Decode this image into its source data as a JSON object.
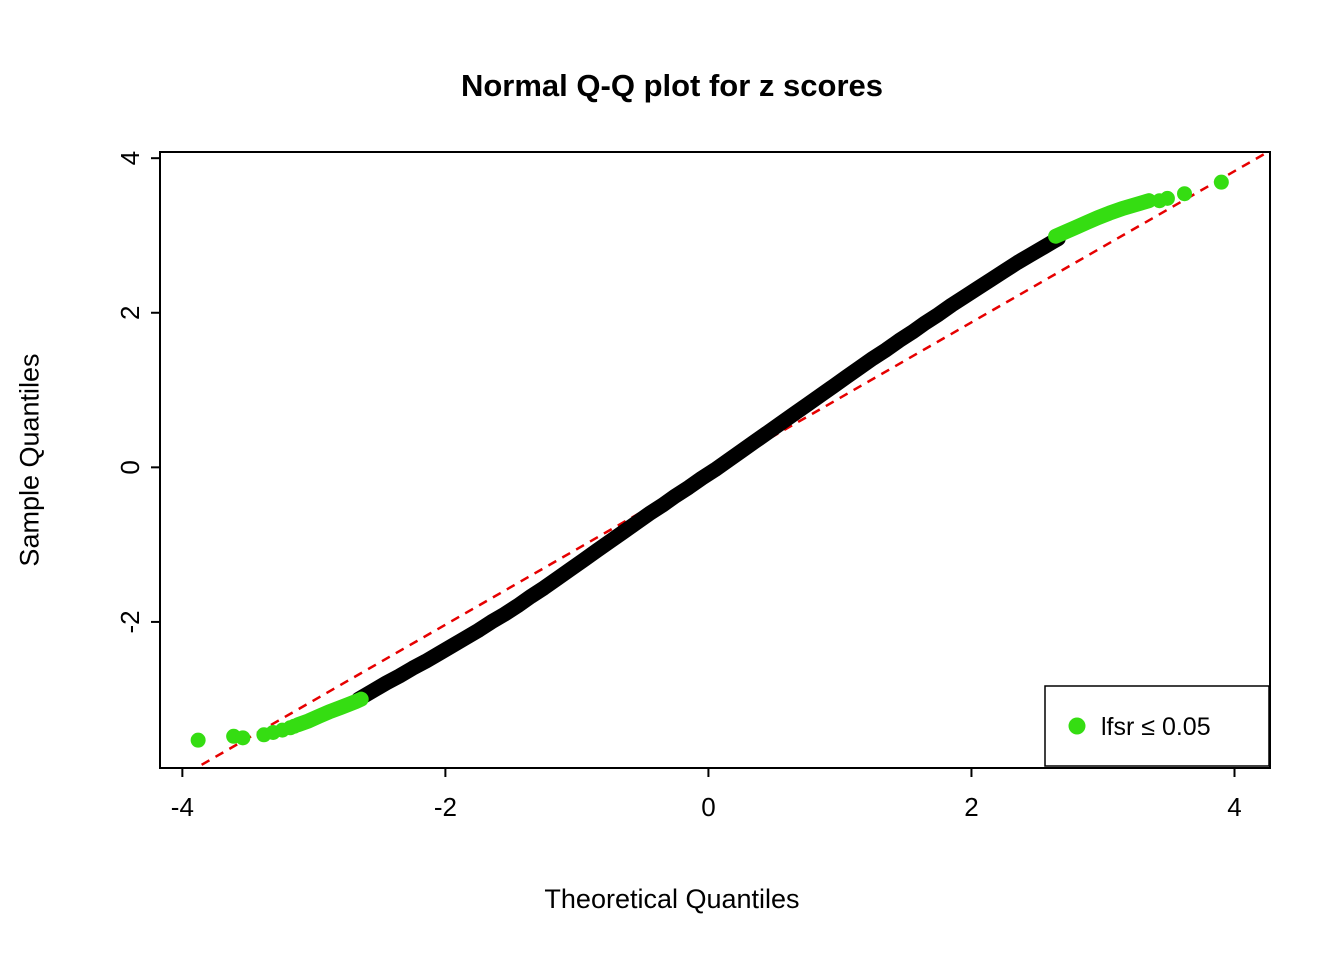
{
  "chart_data": {
    "type": "scatter",
    "title": "Normal Q-Q plot for z scores",
    "xlabel": "Theoretical Quantiles",
    "ylabel": "Sample Quantiles",
    "xlim": [
      -4.17,
      4.27
    ],
    "ylim": [
      -3.89,
      4.08
    ],
    "x_ticks": [
      -4,
      -2,
      0,
      2,
      4
    ],
    "y_ticks": [
      -2,
      0,
      2,
      4
    ],
    "grid": false,
    "reference_line": {
      "slope": 0.978,
      "intercept": -0.08,
      "color": "#E60000",
      "style": "dashed"
    },
    "series": [
      {
        "name": "qq-points-black",
        "color": "#000000",
        "render": "band",
        "points": [
          [
            -2.66,
            -3.0
          ],
          [
            -2.55,
            -2.89
          ],
          [
            -2.45,
            -2.79
          ],
          [
            -2.35,
            -2.7
          ],
          [
            -2.25,
            -2.6
          ],
          [
            -2.15,
            -2.51
          ],
          [
            -2.05,
            -2.41
          ],
          [
            -1.95,
            -2.31
          ],
          [
            -1.85,
            -2.21
          ],
          [
            -1.75,
            -2.11
          ],
          [
            -1.65,
            -2.0
          ],
          [
            -1.55,
            -1.9
          ],
          [
            -1.45,
            -1.79
          ],
          [
            -1.35,
            -1.67
          ],
          [
            -1.25,
            -1.56
          ],
          [
            -1.15,
            -1.44
          ],
          [
            -1.05,
            -1.32
          ],
          [
            -0.95,
            -1.2
          ],
          [
            -0.85,
            -1.08
          ],
          [
            -0.75,
            -0.96
          ],
          [
            -0.65,
            -0.84
          ],
          [
            -0.55,
            -0.72
          ],
          [
            -0.45,
            -0.6
          ],
          [
            -0.35,
            -0.49
          ],
          [
            -0.25,
            -0.37
          ],
          [
            -0.15,
            -0.26
          ],
          [
            -0.05,
            -0.14
          ],
          [
            0.05,
            -0.03
          ],
          [
            0.15,
            0.09
          ],
          [
            0.25,
            0.21
          ],
          [
            0.35,
            0.33
          ],
          [
            0.45,
            0.45
          ],
          [
            0.55,
            0.57
          ],
          [
            0.65,
            0.69
          ],
          [
            0.75,
            0.81
          ],
          [
            0.85,
            0.93
          ],
          [
            0.95,
            1.05
          ],
          [
            1.05,
            1.17
          ],
          [
            1.15,
            1.29
          ],
          [
            1.25,
            1.41
          ],
          [
            1.35,
            1.52
          ],
          [
            1.45,
            1.64
          ],
          [
            1.55,
            1.75
          ],
          [
            1.65,
            1.87
          ],
          [
            1.75,
            1.98
          ],
          [
            1.85,
            2.1
          ],
          [
            1.95,
            2.21
          ],
          [
            2.05,
            2.32
          ],
          [
            2.15,
            2.43
          ],
          [
            2.25,
            2.54
          ],
          [
            2.35,
            2.65
          ],
          [
            2.45,
            2.75
          ],
          [
            2.55,
            2.85
          ],
          [
            2.62,
            2.92
          ],
          [
            2.66,
            2.96
          ]
        ]
      },
      {
        "name": "lfsr-significant-left-band",
        "color": "#35DD12",
        "render": "band",
        "points": [
          [
            -3.12,
            -3.33
          ],
          [
            -3.04,
            -3.28
          ],
          [
            -2.96,
            -3.22
          ],
          [
            -2.88,
            -3.16
          ],
          [
            -2.8,
            -3.11
          ],
          [
            -2.74,
            -3.07
          ],
          [
            -2.68,
            -3.03
          ],
          [
            -2.64,
            -3.0
          ]
        ]
      },
      {
        "name": "lfsr-significant-left-dots",
        "color": "#35DD12",
        "render": "dots",
        "points": [
          [
            -3.88,
            -3.53
          ],
          [
            -3.61,
            -3.48
          ],
          [
            -3.54,
            -3.5
          ],
          [
            -3.38,
            -3.46
          ],
          [
            -3.31,
            -3.43
          ],
          [
            -3.24,
            -3.4
          ],
          [
            -3.18,
            -3.37
          ],
          [
            -3.15,
            -3.35
          ]
        ]
      },
      {
        "name": "lfsr-significant-right-band",
        "color": "#35DD12",
        "render": "band",
        "points": [
          [
            2.64,
            2.99
          ],
          [
            2.72,
            3.05
          ],
          [
            2.8,
            3.11
          ],
          [
            2.88,
            3.17
          ],
          [
            2.96,
            3.23
          ],
          [
            3.05,
            3.29
          ],
          [
            3.15,
            3.35
          ],
          [
            3.25,
            3.4
          ],
          [
            3.35,
            3.45
          ]
        ]
      },
      {
        "name": "lfsr-significant-right-dots",
        "color": "#35DD12",
        "render": "dots",
        "points": [
          [
            3.43,
            3.45
          ],
          [
            3.49,
            3.48
          ],
          [
            3.62,
            3.54
          ],
          [
            3.9,
            3.69
          ]
        ]
      }
    ],
    "legend": {
      "label": "lfsr  ≤ 0.05",
      "marker_color": "#35DD12",
      "position": "bottomright"
    }
  }
}
